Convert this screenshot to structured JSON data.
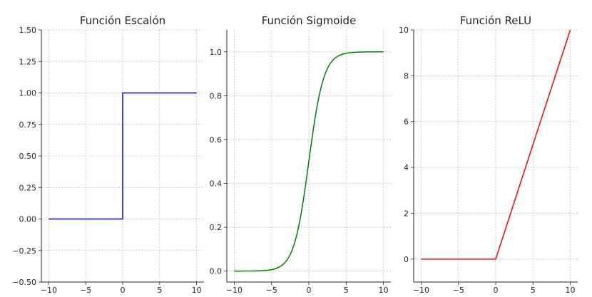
{
  "chart_data": [
    {
      "type": "line",
      "title": "Función Escalón",
      "xlabel": "",
      "ylabel": "",
      "xlim": [
        -11,
        11
      ],
      "ylim": [
        -0.5,
        1.5
      ],
      "xticks": [
        -10,
        -5,
        0,
        5,
        10
      ],
      "xtick_labels": [
        "−10",
        "−5",
        "0",
        "5",
        "10"
      ],
      "yticks": [
        -0.5,
        -0.25,
        0,
        0.25,
        0.5,
        0.75,
        1,
        1.25,
        1.5
      ],
      "ytick_labels": [
        "−0.50",
        "−0.25",
        "0.00",
        "0.25",
        "0.50",
        "0.75",
        "1.00",
        "1.25",
        "1.50"
      ],
      "grid": true,
      "series": [
        {
          "color": "#0000ff",
          "func": "step",
          "x": [
            -10,
            0,
            0,
            10
          ],
          "y": [
            0,
            0,
            1,
            1
          ]
        }
      ]
    },
    {
      "type": "line",
      "title": "Función Sigmoide",
      "xlabel": "",
      "ylabel": "",
      "xlim": [
        -11,
        11
      ],
      "ylim": [
        -0.05,
        1.1
      ],
      "xticks": [
        -10,
        -5,
        0,
        5,
        10
      ],
      "xtick_labels": [
        "−10",
        "−5",
        "0",
        "5",
        "10"
      ],
      "yticks": [
        0,
        0.2,
        0.4,
        0.6,
        0.8,
        1
      ],
      "ytick_labels": [
        "0.0",
        "0.2",
        "0.4",
        "0.6",
        "0.8",
        "1.0"
      ],
      "grid": true,
      "series": [
        {
          "color": "#008000",
          "func": "sigmoid",
          "x": [
            -10,
            -8,
            -6,
            -5,
            -4,
            -3,
            -2,
            -1,
            0,
            1,
            2,
            3,
            4,
            5,
            6,
            8,
            10
          ],
          "y": [
            0.0,
            0.0003,
            0.0025,
            0.0067,
            0.018,
            0.047,
            0.119,
            0.269,
            0.5,
            0.731,
            0.881,
            0.953,
            0.982,
            0.993,
            0.9975,
            0.9997,
            1.0
          ]
        }
      ]
    },
    {
      "type": "line",
      "title": "Función ReLU",
      "xlabel": "",
      "ylabel": "",
      "xlim": [
        -11,
        11
      ],
      "ylim": [
        -1,
        10
      ],
      "xticks": [
        -10,
        -5,
        0,
        5,
        10
      ],
      "xtick_labels": [
        "−10",
        "−5",
        "0",
        "5",
        "10"
      ],
      "yticks": [
        0,
        2,
        4,
        6,
        8,
        10
      ],
      "ytick_labels": [
        "0",
        "2",
        "4",
        "6",
        "8",
        "10"
      ],
      "grid": true,
      "series": [
        {
          "color": "#ff0000",
          "func": "relu",
          "x": [
            -10,
            0,
            10
          ],
          "y": [
            0,
            0,
            10
          ]
        }
      ]
    }
  ]
}
